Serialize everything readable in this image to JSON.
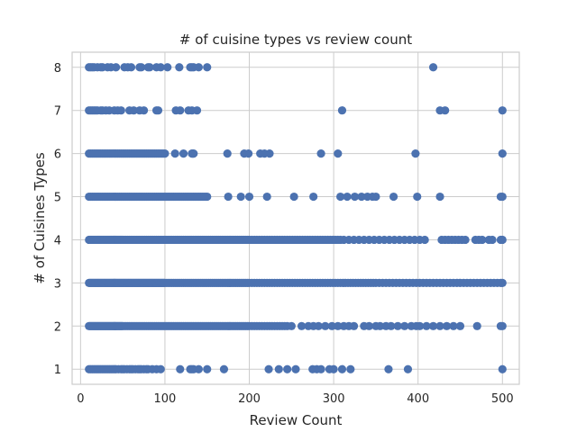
{
  "chart_data": {
    "type": "scatter",
    "title": "# of cuisine types vs review count",
    "xlabel": "Review Count",
    "ylabel": "# of Cuisines Types",
    "xlim": [
      -10,
      520
    ],
    "ylim": [
      0.65,
      8.35
    ],
    "xticks": [
      "0",
      "100",
      "200",
      "300",
      "400",
      "500"
    ],
    "yticks": [
      "1",
      "2",
      "3",
      "4",
      "5",
      "6",
      "7",
      "8"
    ],
    "grid": true,
    "marker_color": "#4c72b0",
    "series": [
      {
        "y": 1,
        "x": [
          10,
          12,
          14,
          16,
          18,
          20,
          22,
          24,
          26,
          28,
          30,
          32,
          34,
          36,
          38,
          40,
          42,
          45,
          48,
          50,
          52,
          55,
          58,
          60,
          62,
          65,
          68,
          70,
          72,
          75,
          78,
          80,
          85,
          90,
          95,
          118,
          130,
          132,
          134,
          140,
          150,
          170,
          223,
          235,
          245,
          255,
          275,
          280,
          285,
          295,
          300,
          310,
          320,
          365,
          388,
          500
        ]
      },
      {
        "y": 2,
        "x": [
          10,
          11,
          12,
          13,
          14,
          15,
          16,
          17,
          18,
          19,
          20,
          21,
          22,
          23,
          24,
          25,
          26,
          27,
          28,
          29,
          30,
          31,
          32,
          33,
          34,
          35,
          36,
          37,
          38,
          39,
          40,
          41,
          42,
          43,
          44,
          45,
          46,
          47,
          48,
          49,
          50,
          52,
          54,
          56,
          58,
          60,
          62,
          64,
          66,
          68,
          70,
          72,
          74,
          76,
          78,
          80,
          82,
          84,
          86,
          88,
          90,
          92,
          94,
          96,
          98,
          100,
          102,
          104,
          106,
          108,
          110,
          112,
          114,
          116,
          118,
          120,
          122,
          124,
          126,
          128,
          130,
          132,
          134,
          136,
          138,
          140,
          142,
          144,
          146,
          148,
          150,
          152,
          154,
          156,
          158,
          160,
          162,
          164,
          166,
          168,
          170,
          172,
          174,
          176,
          178,
          180,
          182,
          184,
          186,
          188,
          190,
          192,
          194,
          196,
          198,
          200,
          203,
          206,
          209,
          212,
          215,
          218,
          221,
          224,
          227,
          230,
          233,
          236,
          239,
          242,
          245,
          250,
          262,
          270,
          276,
          282,
          290,
          298,
          305,
          312,
          318,
          324,
          336,
          342,
          350,
          355,
          362,
          368,
          376,
          384,
          392,
          398,
          402,
          410,
          418,
          426,
          434,
          442,
          450,
          470,
          498,
          500
        ]
      },
      {
        "y": 3,
        "x": [
          10,
          11,
          12,
          13,
          14,
          15,
          16,
          17,
          18,
          19,
          20,
          21,
          22,
          23,
          24,
          25,
          26,
          27,
          28,
          29,
          30,
          31,
          32,
          33,
          34,
          35,
          36,
          37,
          38,
          39,
          40,
          41,
          42,
          43,
          44,
          45,
          46,
          47,
          48,
          49,
          50,
          51,
          52,
          53,
          54,
          55,
          56,
          57,
          58,
          59,
          60,
          61,
          62,
          63,
          64,
          65,
          66,
          67,
          68,
          69,
          70,
          71,
          72,
          73,
          74,
          75,
          76,
          77,
          78,
          79,
          80,
          81,
          82,
          83,
          84,
          85,
          86,
          87,
          88,
          89,
          90,
          91,
          92,
          93,
          94,
          95,
          96,
          97,
          98,
          99,
          100,
          102,
          104,
          106,
          108,
          110,
          112,
          114,
          116,
          118,
          120,
          122,
          124,
          126,
          128,
          130,
          132,
          134,
          136,
          138,
          140,
          142,
          144,
          146,
          148,
          150,
          152,
          154,
          156,
          158,
          160,
          162,
          164,
          166,
          168,
          170,
          172,
          174,
          176,
          178,
          180,
          182,
          184,
          186,
          188,
          190,
          192,
          194,
          196,
          198,
          200,
          203,
          206,
          209,
          212,
          215,
          218,
          221,
          224,
          227,
          230,
          233,
          236,
          239,
          242,
          245,
          248,
          251,
          254,
          257,
          260,
          263,
          266,
          269,
          272,
          275,
          278,
          281,
          284,
          287,
          290,
          293,
          296,
          299,
          302,
          305,
          308,
          311,
          314,
          317,
          320,
          323,
          326,
          329,
          332,
          335,
          338,
          341,
          344,
          347,
          350,
          354,
          358,
          362,
          366,
          370,
          374,
          378,
          382,
          386,
          390,
          394,
          398,
          402,
          406,
          410,
          414,
          418,
          422,
          426,
          430,
          434,
          438,
          442,
          446,
          450,
          454,
          458,
          462,
          466,
          470,
          474,
          478,
          482,
          486,
          490,
          494,
          498,
          500
        ]
      },
      {
        "y": 4,
        "x": [
          10,
          11,
          12,
          13,
          14,
          15,
          16,
          17,
          18,
          19,
          20,
          21,
          22,
          23,
          24,
          25,
          26,
          27,
          28,
          29,
          30,
          31,
          32,
          33,
          34,
          35,
          36,
          37,
          38,
          39,
          40,
          41,
          42,
          43,
          44,
          45,
          46,
          47,
          48,
          49,
          50,
          52,
          54,
          56,
          58,
          60,
          62,
          64,
          66,
          68,
          70,
          72,
          74,
          76,
          78,
          80,
          82,
          84,
          86,
          88,
          90,
          92,
          94,
          96,
          98,
          100,
          102,
          104,
          106,
          108,
          110,
          112,
          114,
          116,
          118,
          120,
          122,
          124,
          126,
          128,
          130,
          132,
          134,
          136,
          138,
          140,
          142,
          144,
          146,
          148,
          150,
          152,
          154,
          156,
          158,
          160,
          162,
          164,
          166,
          168,
          170,
          172,
          174,
          176,
          178,
          180,
          182,
          184,
          186,
          188,
          190,
          192,
          194,
          196,
          198,
          200,
          203,
          206,
          209,
          212,
          215,
          218,
          221,
          224,
          227,
          230,
          233,
          236,
          239,
          242,
          245,
          248,
          251,
          254,
          257,
          260,
          263,
          266,
          269,
          272,
          275,
          278,
          281,
          284,
          287,
          290,
          293,
          296,
          299,
          302,
          305,
          308,
          312,
          318,
          324,
          330,
          336,
          342,
          348,
          354,
          360,
          366,
          372,
          378,
          384,
          390,
          396,
          402,
          408,
          428,
          432,
          436,
          440,
          444,
          448,
          452,
          456,
          468,
          472,
          476,
          484,
          488,
          498,
          500
        ]
      },
      {
        "y": 5,
        "x": [
          10,
          12,
          14,
          16,
          18,
          20,
          22,
          24,
          26,
          28,
          30,
          32,
          34,
          36,
          38,
          40,
          42,
          44,
          46,
          48,
          50,
          52,
          54,
          56,
          58,
          60,
          62,
          64,
          66,
          68,
          70,
          72,
          74,
          76,
          78,
          80,
          82,
          84,
          86,
          88,
          90,
          92,
          94,
          96,
          98,
          100,
          102,
          104,
          106,
          108,
          110,
          112,
          114,
          116,
          118,
          120,
          122,
          124,
          126,
          128,
          130,
          132,
          134,
          136,
          138,
          140,
          142,
          144,
          146,
          148,
          150,
          175,
          190,
          200,
          221,
          253,
          276,
          308,
          316,
          325,
          333,
          340,
          346,
          350,
          371,
          399,
          426,
          498,
          500
        ]
      },
      {
        "y": 6,
        "x": [
          10,
          12,
          14,
          16,
          18,
          20,
          22,
          24,
          26,
          28,
          30,
          32,
          34,
          36,
          38,
          40,
          42,
          44,
          46,
          48,
          50,
          52,
          54,
          56,
          58,
          60,
          62,
          64,
          66,
          68,
          70,
          72,
          74,
          76,
          78,
          80,
          82,
          84,
          86,
          88,
          90,
          92,
          94,
          96,
          98,
          100,
          112,
          122,
          132,
          133,
          134,
          174,
          194,
          199,
          213,
          218,
          224,
          285,
          305,
          397,
          500
        ]
      },
      {
        "y": 7,
        "x": [
          10,
          12,
          14,
          16,
          18,
          20,
          24,
          26,
          30,
          34,
          40,
          44,
          48,
          58,
          63,
          70,
          75,
          90,
          92,
          113,
          118,
          128,
          132,
          138,
          310,
          426,
          432,
          500
        ]
      },
      {
        "y": 8,
        "x": [
          10,
          12,
          14,
          16,
          20,
          24,
          26,
          32,
          36,
          42,
          52,
          56,
          60,
          70,
          72,
          80,
          82,
          90,
          95,
          103,
          117,
          130,
          132,
          134,
          140,
          150,
          418
        ]
      }
    ]
  }
}
